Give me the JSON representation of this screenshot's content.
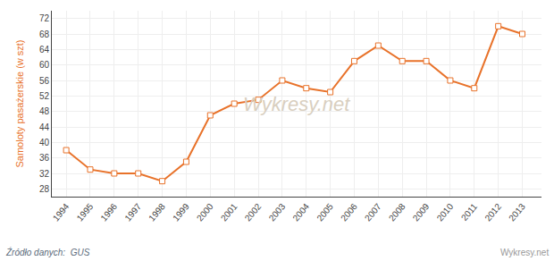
{
  "chart_data": {
    "type": "line",
    "x": [
      1994,
      1995,
      1996,
      1997,
      1998,
      1999,
      2000,
      2001,
      2002,
      2003,
      2004,
      2005,
      2006,
      2007,
      2008,
      2009,
      2010,
      2011,
      2012,
      2013
    ],
    "values": [
      38,
      33,
      32,
      32,
      30,
      35,
      47,
      50,
      51,
      56,
      54,
      53,
      61,
      65,
      61,
      61,
      56,
      54,
      70,
      68
    ],
    "color": "#e8722a",
    "marker": "square",
    "y_label": "Samoloty pasażerskie (w szt)",
    "xlim": [
      1993.4,
      2013.8
    ],
    "xticks": [
      1994,
      1995,
      1996,
      1997,
      1998,
      1999,
      2000,
      2001,
      2002,
      2003,
      2004,
      2005,
      2006,
      2007,
      2008,
      2009,
      2010,
      2011,
      2012,
      2013
    ],
    "ylim": [
      26,
      74
    ],
    "yticks": [
      28,
      32,
      36,
      40,
      44,
      48,
      52,
      56,
      60,
      64,
      68,
      72
    ],
    "grid": true,
    "annotations": [
      "Wykresy.net",
      "Źródło danych:  GUS",
      "Wykresy.net"
    ]
  }
}
